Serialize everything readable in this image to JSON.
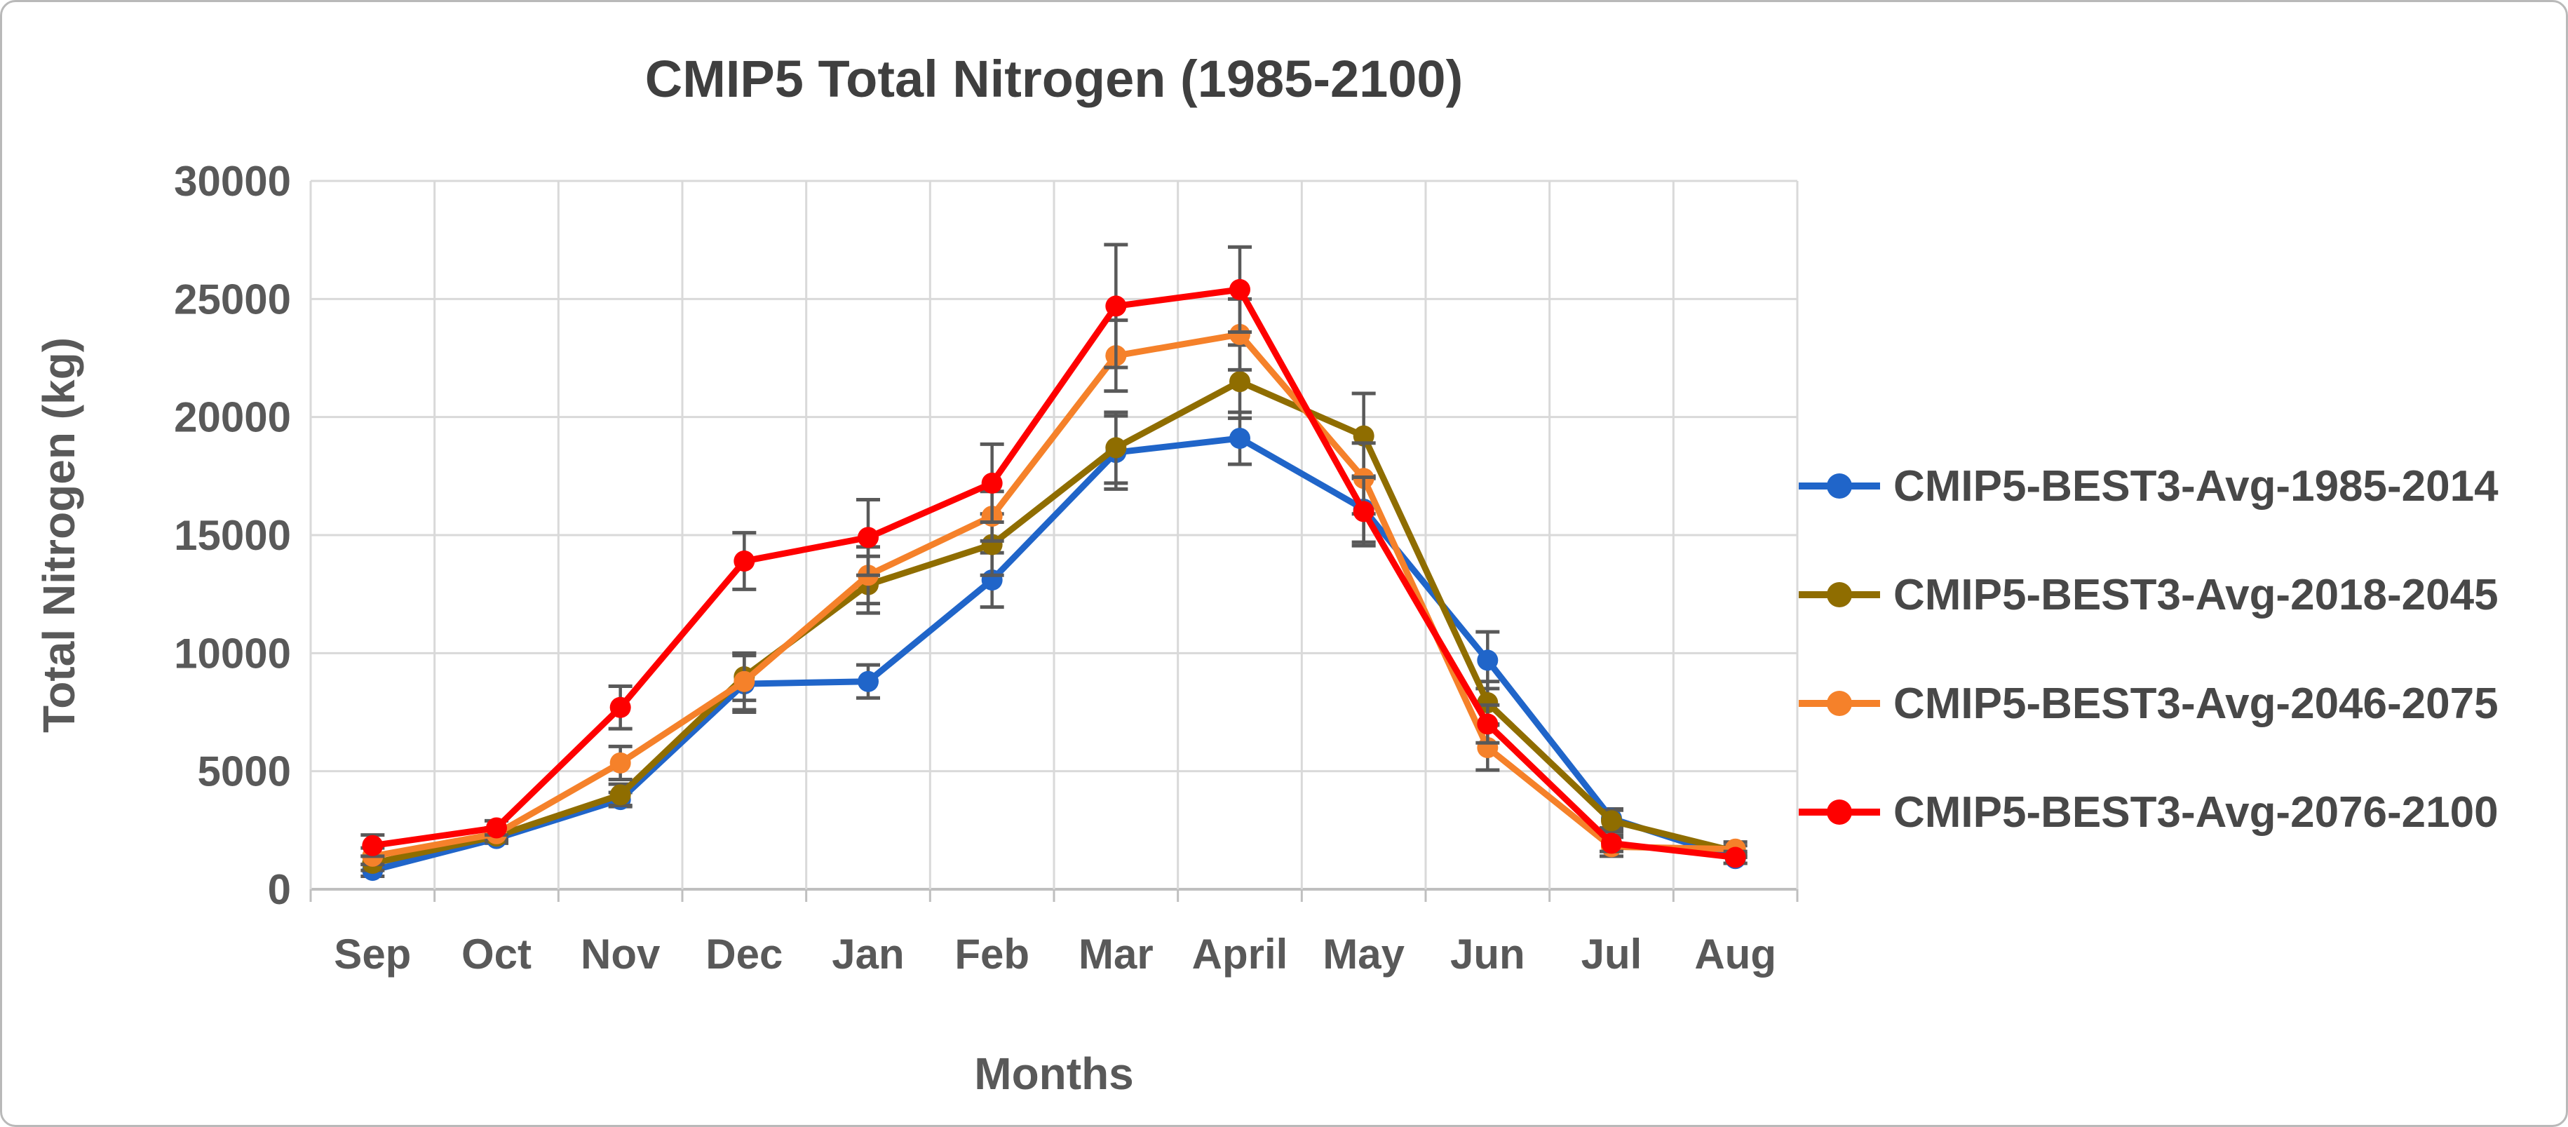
{
  "chart_data": {
    "type": "line",
    "title": "CMIP5 Total Nitrogen (1985-2100)",
    "xlabel": "Months",
    "ylabel": "Total Nitrogen (kg)",
    "categories": [
      "Sep",
      "Oct",
      "Nov",
      "Dec",
      "Jan",
      "Feb",
      "Mar",
      "April",
      "May",
      "Jun",
      "Jul",
      "Aug"
    ],
    "ylim": [
      0,
      30000
    ],
    "yticks": [
      0,
      5000,
      10000,
      15000,
      20000,
      25000,
      30000
    ],
    "grid": true,
    "legend_position": "right",
    "error_bars": true,
    "colors": {
      "grid": "#d9d9d9",
      "axis": "#bfbfbf",
      "error_bar": "#595959",
      "tick_text": "#595959",
      "title_text": "#3f3f3f"
    },
    "series": [
      {
        "name": "CMIP5-BEST3-Avg-1985-2014",
        "color": "#2065C9",
        "values": [
          800,
          2150,
          3800,
          8700,
          8800,
          13100,
          18500,
          19100,
          16100,
          9700,
          3000,
          1300
        ],
        "errors": [
          250,
          200,
          300,
          1200,
          700,
          1150,
          1550,
          1100,
          1400,
          1200,
          400,
          200
        ]
      },
      {
        "name": "CMIP5-BEST3-Avg-2018-2045",
        "color": "#8F6D00",
        "values": [
          1100,
          2250,
          4000,
          9000,
          12900,
          14600,
          18700,
          21500,
          19200,
          7900,
          2900,
          1600
        ],
        "errors": [
          300,
          250,
          450,
          1000,
          1200,
          1300,
          1500,
          1550,
          1800,
          900,
          450,
          250
        ]
      },
      {
        "name": "CMIP5-BEST3-Avg-2046-2075",
        "color": "#F5812A",
        "values": [
          1400,
          2350,
          5350,
          8800,
          13300,
          15800,
          22600,
          23500,
          17400,
          6000,
          1800,
          1700
        ],
        "errors": [
          350,
          250,
          700,
          1200,
          1200,
          1050,
          1500,
          1500,
          1500,
          950,
          400,
          300
        ]
      },
      {
        "name": "CMIP5-BEST3-Avg-2076-2100",
        "color": "#FE0000",
        "values": [
          1850,
          2600,
          7700,
          13900,
          14900,
          17200,
          24700,
          25400,
          16000,
          7000,
          1950,
          1350
        ],
        "errors": [
          450,
          300,
          900,
          1200,
          1600,
          1650,
          2600,
          1800,
          1450,
          800,
          350,
          250
        ]
      }
    ]
  }
}
